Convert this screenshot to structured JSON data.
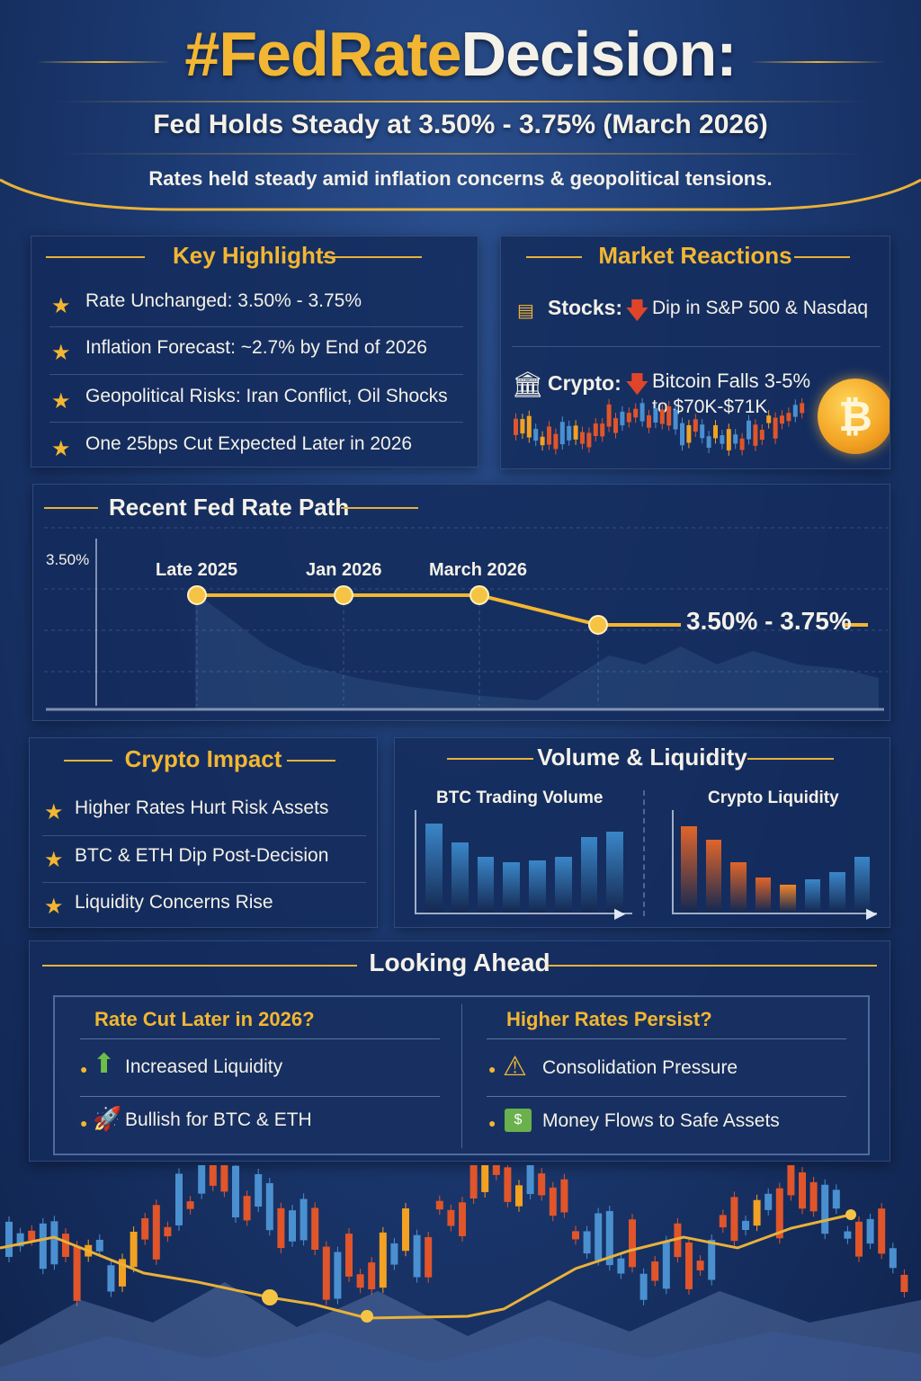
{
  "header": {
    "title_part1": "#FedRate",
    "title_part2": "Decision:",
    "subtitle": "Fed Holds Steady at 3.50% - 3.75% (March 2026)",
    "tagline": "Rates held steady amid inflation concerns & geopolitical tensions."
  },
  "key_highlights": {
    "title": "Key Highlights",
    "items": [
      "Rate Unchanged: 3.50% - 3.75%",
      "Inflation Forecast: ~2.7% by End of 2026",
      "Geopolitical Risks: Iran Conflict, Oil Shocks",
      "One 25bps Cut Expected Later in 2026"
    ]
  },
  "market_reactions": {
    "title": "Market Reactions",
    "stocks_label": "Stocks:",
    "stocks_text": "Dip in S&P 500 & Nasdaq",
    "crypto_label": "Crypto:",
    "crypto_line1": "Bitcoin Falls 3-5%",
    "crypto_line2": "to $70K-$71K"
  },
  "rate_path": {
    "title": "Recent Fed Rate Path",
    "y_label": "3.50%",
    "points": [
      "Late 2025",
      "Jan 2026",
      "March 2026"
    ],
    "end_label": "3.50% - 3.75%"
  },
  "crypto_impact": {
    "title": "Crypto Impact",
    "items": [
      "Higher Rates Hurt Risk Assets",
      "BTC & ETH Dip Post-Decision",
      "Liquidity Concerns Rise"
    ]
  },
  "volume_liquidity": {
    "title": "Volume & Liquidity",
    "btc_volume_label": "BTC Trading Volume",
    "crypto_liquidity_label": "Crypto Liquidity",
    "btc_volume_bars": [
      0.88,
      0.7,
      0.55,
      0.5,
      0.52,
      0.55,
      0.75,
      0.8
    ],
    "liquidity_bars": [
      0.86,
      0.72,
      0.5,
      0.35,
      0.28,
      0.33,
      0.4,
      0.55
    ],
    "btc_color": "#3a86c8",
    "liquidity_colors": [
      "#e0652a",
      "#e0652a",
      "#e0652a",
      "#e0652a",
      "#f0862a",
      "#3a86c8",
      "#3a86c8",
      "#3a86c8"
    ]
  },
  "looking_ahead": {
    "title": "Looking Ahead",
    "left_title": "Rate Cut Later in 2026?",
    "left_items": [
      "Increased Liquidity",
      "Bullish for BTC & ETH"
    ],
    "right_title": "Higher Rates Persist?",
    "right_items": [
      "Consolidation Pressure",
      "Money Flows to Safe Assets"
    ]
  },
  "colors": {
    "gold": "#f2b632",
    "background": "#1c3a72",
    "down_red": "#e0452a"
  }
}
